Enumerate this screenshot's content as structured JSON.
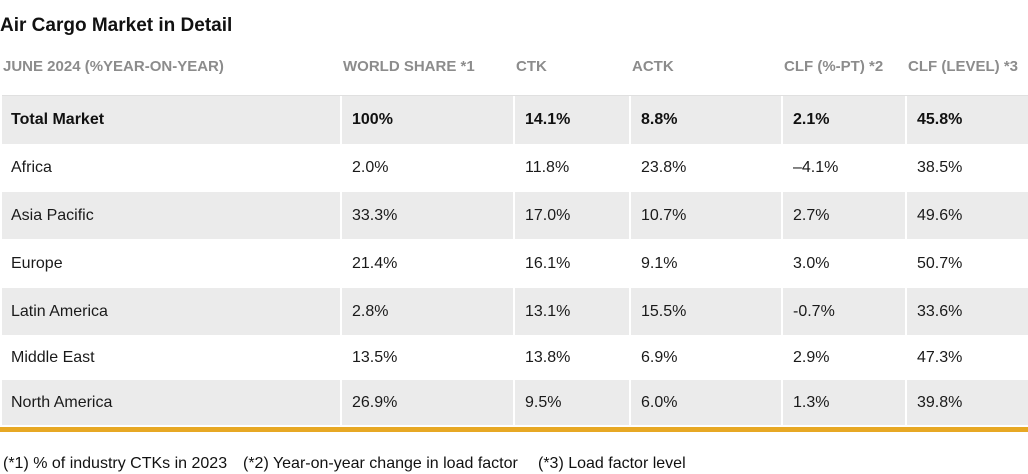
{
  "colors": {
    "shaded_row": "#ebebeb",
    "header_text": "#8c8c8c",
    "body_text": "#1a1a1a",
    "accent_rule": "#e7a824"
  },
  "chart_data": {
    "type": "table",
    "title": "Air Cargo Market in Detail",
    "columns": [
      "JUNE 2024 (%YEAR-ON-YEAR)",
      "WORLD SHARE *1",
      "CTK",
      "ACTK",
      "CLF (%-PT) *2",
      "CLF (LEVEL) *3"
    ],
    "rows": [
      [
        "Total Market",
        "100%",
        "14.1%",
        "8.8%",
        "2.1%",
        "45.8%"
      ],
      [
        "Africa",
        "2.0%",
        "11.8%",
        "23.8%",
        "–4.1%",
        "38.5%"
      ],
      [
        "Asia Pacific",
        "33.3%",
        "17.0%",
        "10.7%",
        "2.7%",
        "49.6%"
      ],
      [
        "Europe",
        "21.4%",
        "16.1%",
        "9.1%",
        "3.0%",
        "50.7%"
      ],
      [
        "Latin America",
        "2.8%",
        "13.1%",
        "15.5%",
        "-0.7%",
        "33.6%"
      ],
      [
        "Middle East",
        "13.5%",
        "13.8%",
        "6.9%",
        "2.9%",
        "47.3%"
      ],
      [
        "North America",
        "26.9%",
        "9.5%",
        "6.0%",
        "1.3%",
        "39.8%"
      ]
    ]
  },
  "footnotes": [
    "(*1) % of industry CTKs in 2023",
    "(*2) Year-on-year change in load factor",
    "(*3) Load factor level"
  ]
}
